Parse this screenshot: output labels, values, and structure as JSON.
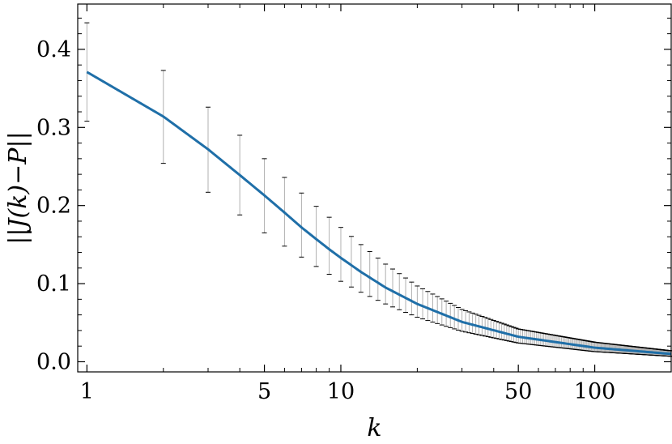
{
  "chart_data": {
    "type": "line",
    "xlabel": "k",
    "ylabel": "||J(k)−P||",
    "x_scale": "log",
    "xlim": [
      0.92,
      200
    ],
    "ylim": [
      -0.013,
      0.458
    ],
    "x_ticks": [
      {
        "value": 1,
        "label": "1"
      },
      {
        "value": 5,
        "label": "5"
      },
      {
        "value": 10,
        "label": "10"
      },
      {
        "value": 50,
        "label": "50"
      },
      {
        "value": 100,
        "label": "100"
      }
    ],
    "y_ticks": [
      {
        "value": 0.0,
        "label": "0.0"
      },
      {
        "value": 0.1,
        "label": "0.1"
      },
      {
        "value": 0.2,
        "label": "0.2"
      },
      {
        "value": 0.3,
        "label": "0.3"
      },
      {
        "value": 0.4,
        "label": "0.4"
      }
    ],
    "grid": false,
    "line_color": "#1f6fa8",
    "error_bar_color": "#b0b0b0",
    "series": [
      {
        "x": [
          1,
          2,
          3,
          4,
          5,
          6,
          7,
          8,
          9,
          10,
          12,
          15,
          20,
          30,
          50,
          100,
          200
        ],
        "y": [
          0.371,
          0.314,
          0.272,
          0.239,
          0.213,
          0.191,
          0.172,
          0.157,
          0.144,
          0.133,
          0.115,
          0.095,
          0.074,
          0.051,
          0.032,
          0.018,
          0.01
        ],
        "yerr_low": [
          0.308,
          0.254,
          0.217,
          0.188,
          0.165,
          0.148,
          0.134,
          0.122,
          0.112,
          0.103,
          0.089,
          0.074,
          0.057,
          0.039,
          0.024,
          0.013,
          0.007
        ],
        "yerr_high": [
          0.434,
          0.373,
          0.326,
          0.29,
          0.26,
          0.236,
          0.216,
          0.199,
          0.185,
          0.172,
          0.15,
          0.125,
          0.097,
          0.067,
          0.042,
          0.025,
          0.014
        ]
      }
    ]
  }
}
